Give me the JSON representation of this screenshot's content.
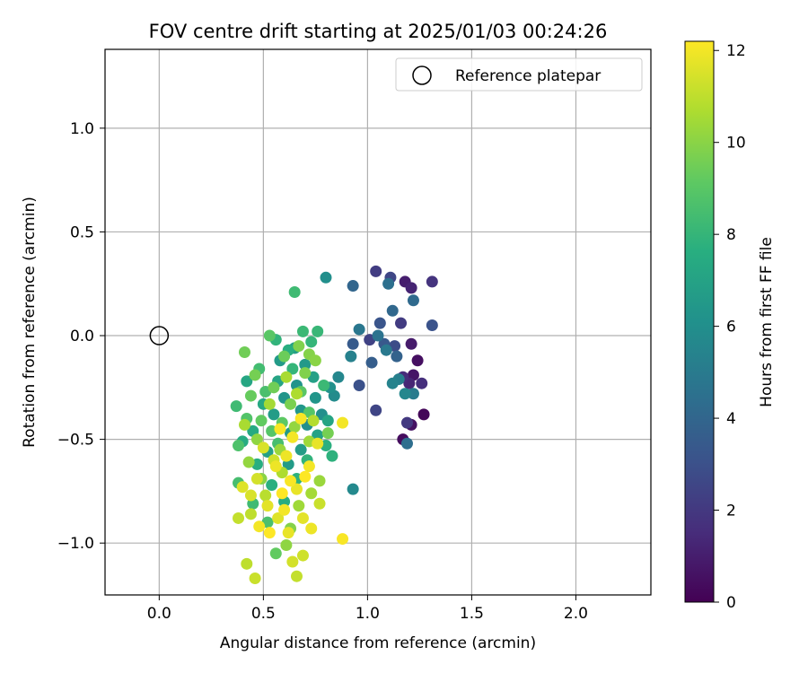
{
  "chart_data": {
    "type": "scatter",
    "title": "FOV centre drift starting at 2025/01/03 00:24:26",
    "xlabel": "Angular distance from reference (arcmin)",
    "ylabel": "Rotation from reference (arcmin)",
    "xlim": [
      -0.26,
      2.36
    ],
    "ylim": [
      -1.25,
      1.38
    ],
    "xticks": [
      0.0,
      0.5,
      1.0,
      1.5,
      2.0
    ],
    "xtick_labels": [
      "0.0",
      "0.5",
      "1.0",
      "1.5",
      "2.0"
    ],
    "yticks": [
      -1.0,
      -0.5,
      0.0,
      0.5,
      1.0
    ],
    "ytick_labels": [
      "−1.0",
      "−0.5",
      "0.0",
      "0.5",
      "1.0"
    ],
    "grid": true,
    "legend": {
      "placement": "upper right",
      "entries": [
        "Reference platepar"
      ]
    },
    "reference_point": {
      "x": 0.0,
      "y": 0.0,
      "label": "Reference platepar"
    },
    "colorbar": {
      "label": "Hours from first FF file",
      "min": 0,
      "max": 12.2,
      "colormap": "viridis",
      "ticks": [
        0,
        2,
        4,
        6,
        8,
        10,
        12
      ],
      "tick_labels": [
        "0",
        "2",
        "4",
        "6",
        "8",
        "10",
        "12"
      ]
    },
    "points": [
      {
        "x": 1.27,
        "y": -0.38,
        "h": 0.2
      },
      {
        "x": 1.17,
        "y": -0.5,
        "h": 0.4
      },
      {
        "x": 1.21,
        "y": -0.43,
        "h": 0.6
      },
      {
        "x": 1.24,
        "y": -0.12,
        "h": 0.5
      },
      {
        "x": 1.22,
        "y": -0.19,
        "h": 0.7
      },
      {
        "x": 1.21,
        "y": -0.04,
        "h": 0.9
      },
      {
        "x": 1.18,
        "y": 0.26,
        "h": 1.0
      },
      {
        "x": 1.21,
        "y": 0.23,
        "h": 1.2
      },
      {
        "x": 1.2,
        "y": -0.23,
        "h": 1.3
      },
      {
        "x": 1.17,
        "y": -0.2,
        "h": 1.5
      },
      {
        "x": 1.26,
        "y": -0.23,
        "h": 1.6
      },
      {
        "x": 1.31,
        "y": 0.26,
        "h": 1.8
      },
      {
        "x": 1.19,
        "y": -0.42,
        "h": 2.0
      },
      {
        "x": 1.16,
        "y": 0.06,
        "h": 2.1
      },
      {
        "x": 1.04,
        "y": 0.31,
        "h": 2.2
      },
      {
        "x": 1.01,
        "y": -0.02,
        "h": 2.4
      },
      {
        "x": 1.04,
        "y": -0.36,
        "h": 2.5
      },
      {
        "x": 1.11,
        "y": 0.28,
        "h": 2.6
      },
      {
        "x": 1.13,
        "y": -0.05,
        "h": 2.8
      },
      {
        "x": 0.96,
        "y": -0.24,
        "h": 3.0
      },
      {
        "x": 1.31,
        "y": 0.05,
        "h": 3.1
      },
      {
        "x": 1.06,
        "y": 0.06,
        "h": 3.2
      },
      {
        "x": 1.08,
        "y": -0.04,
        "h": 3.4
      },
      {
        "x": 0.93,
        "y": -0.04,
        "h": 3.5
      },
      {
        "x": 1.02,
        "y": -0.13,
        "h": 3.6
      },
      {
        "x": 1.14,
        "y": -0.1,
        "h": 3.8
      },
      {
        "x": 0.93,
        "y": 0.24,
        "h": 4.0
      },
      {
        "x": 1.12,
        "y": 0.12,
        "h": 4.1
      },
      {
        "x": 1.22,
        "y": 0.17,
        "h": 4.2
      },
      {
        "x": 1.19,
        "y": -0.52,
        "h": 4.4
      },
      {
        "x": 1.1,
        "y": 0.25,
        "h": 4.5
      },
      {
        "x": 1.05,
        "y": 0.0,
        "h": 4.6
      },
      {
        "x": 0.96,
        "y": 0.03,
        "h": 4.8
      },
      {
        "x": 1.09,
        "y": -0.07,
        "h": 4.9
      },
      {
        "x": 1.22,
        "y": -0.28,
        "h": 5.0
      },
      {
        "x": 1.15,
        "y": -0.21,
        "h": 5.2
      },
      {
        "x": 0.92,
        "y": -0.1,
        "h": 5.3
      },
      {
        "x": 1.12,
        "y": -0.23,
        "h": 5.4
      },
      {
        "x": 1.18,
        "y": -0.28,
        "h": 5.6
      },
      {
        "x": 0.93,
        "y": -0.74,
        "h": 5.7
      },
      {
        "x": 0.8,
        "y": 0.28,
        "h": 6.0
      },
      {
        "x": 0.86,
        "y": -0.2,
        "h": 5.6
      },
      {
        "x": 0.84,
        "y": -0.29,
        "h": 5.8
      },
      {
        "x": 0.82,
        "y": -0.25,
        "h": 6.1
      },
      {
        "x": 0.78,
        "y": -0.38,
        "h": 6.0
      },
      {
        "x": 0.75,
        "y": -0.3,
        "h": 6.3
      },
      {
        "x": 0.71,
        "y": -0.43,
        "h": 6.0
      },
      {
        "x": 0.68,
        "y": -0.36,
        "h": 6.4
      },
      {
        "x": 0.66,
        "y": -0.24,
        "h": 6.2
      },
      {
        "x": 0.63,
        "y": -0.47,
        "h": 6.5
      },
      {
        "x": 0.6,
        "y": -0.3,
        "h": 6.3
      },
      {
        "x": 0.58,
        "y": -0.12,
        "h": 6.6
      },
      {
        "x": 0.65,
        "y": -0.06,
        "h": 6.8
      },
      {
        "x": 0.7,
        "y": -0.14,
        "h": 6.5
      },
      {
        "x": 0.74,
        "y": -0.2,
        "h": 6.9
      },
      {
        "x": 0.55,
        "y": -0.38,
        "h": 6.7
      },
      {
        "x": 0.52,
        "y": -0.56,
        "h": 6.9
      },
      {
        "x": 0.62,
        "y": -0.62,
        "h": 6.6
      },
      {
        "x": 0.68,
        "y": -0.55,
        "h": 6.7
      },
      {
        "x": 0.76,
        "y": -0.48,
        "h": 7.0
      },
      {
        "x": 0.81,
        "y": -0.41,
        "h": 7.1
      },
      {
        "x": 0.57,
        "y": -0.22,
        "h": 7.1
      },
      {
        "x": 0.5,
        "y": -0.33,
        "h": 7.3
      },
      {
        "x": 0.45,
        "y": -0.46,
        "h": 7.4
      },
      {
        "x": 0.42,
        "y": -0.22,
        "h": 7.2
      },
      {
        "x": 0.4,
        "y": -0.51,
        "h": 7.5
      },
      {
        "x": 0.47,
        "y": -0.62,
        "h": 7.6
      },
      {
        "x": 0.54,
        "y": -0.72,
        "h": 7.7
      },
      {
        "x": 0.6,
        "y": -0.8,
        "h": 7.5
      },
      {
        "x": 0.66,
        "y": -0.69,
        "h": 7.8
      },
      {
        "x": 0.71,
        "y": -0.6,
        "h": 7.9
      },
      {
        "x": 0.8,
        "y": -0.53,
        "h": 7.7
      },
      {
        "x": 0.83,
        "y": -0.58,
        "h": 7.8
      },
      {
        "x": 0.62,
        "y": -0.07,
        "h": 7.6
      },
      {
        "x": 0.56,
        "y": -0.02,
        "h": 7.9
      },
      {
        "x": 0.73,
        "y": -0.03,
        "h": 8.0
      },
      {
        "x": 0.76,
        "y": 0.02,
        "h": 8.1
      },
      {
        "x": 0.69,
        "y": 0.02,
        "h": 8.2
      },
      {
        "x": 0.65,
        "y": 0.21,
        "h": 8.3
      },
      {
        "x": 0.79,
        "y": -0.24,
        "h": 8.2
      },
      {
        "x": 0.64,
        "y": -0.16,
        "h": 8.0
      },
      {
        "x": 0.48,
        "y": -0.16,
        "h": 8.4
      },
      {
        "x": 0.37,
        "y": -0.34,
        "h": 8.3
      },
      {
        "x": 0.38,
        "y": -0.71,
        "h": 8.5
      },
      {
        "x": 0.45,
        "y": -0.81,
        "h": 8.3
      },
      {
        "x": 0.52,
        "y": -0.9,
        "h": 8.6
      },
      {
        "x": 0.57,
        "y": -0.52,
        "h": 8.5
      },
      {
        "x": 0.51,
        "y": -0.27,
        "h": 8.6
      },
      {
        "x": 0.42,
        "y": -0.4,
        "h": 8.8
      },
      {
        "x": 0.38,
        "y": -0.53,
        "h": 8.7
      },
      {
        "x": 0.72,
        "y": -0.37,
        "h": 8.9
      },
      {
        "x": 0.68,
        "y": -0.27,
        "h": 9.0
      },
      {
        "x": 0.59,
        "y": -0.42,
        "h": 9.1
      },
      {
        "x": 0.54,
        "y": -0.46,
        "h": 8.9
      },
      {
        "x": 0.49,
        "y": -0.41,
        "h": 9.2
      },
      {
        "x": 0.44,
        "y": -0.29,
        "h": 9.3
      },
      {
        "x": 0.53,
        "y": 0.0,
        "h": 9.0
      },
      {
        "x": 0.6,
        "y": -0.1,
        "h": 9.4
      },
      {
        "x": 0.41,
        "y": -0.08,
        "h": 9.5
      },
      {
        "x": 0.46,
        "y": -0.19,
        "h": 9.6
      },
      {
        "x": 0.55,
        "y": -0.25,
        "h": 9.5
      },
      {
        "x": 0.63,
        "y": -0.33,
        "h": 9.7
      },
      {
        "x": 0.7,
        "y": -0.18,
        "h": 9.8
      },
      {
        "x": 0.72,
        "y": -0.09,
        "h": 9.9
      },
      {
        "x": 0.67,
        "y": -0.05,
        "h": 9.8
      },
      {
        "x": 0.75,
        "y": -0.12,
        "h": 10.0
      },
      {
        "x": 0.81,
        "y": -0.47,
        "h": 9.6
      },
      {
        "x": 0.56,
        "y": -1.05,
        "h": 9.2
      },
      {
        "x": 0.63,
        "y": -0.93,
        "h": 9.9
      },
      {
        "x": 0.61,
        "y": -1.01,
        "h": 10.1
      },
      {
        "x": 0.49,
        "y": -0.69,
        "h": 10.0
      },
      {
        "x": 0.43,
        "y": -0.61,
        "h": 10.2
      },
      {
        "x": 0.47,
        "y": -0.5,
        "h": 10.1
      },
      {
        "x": 0.58,
        "y": -0.55,
        "h": 10.3
      },
      {
        "x": 0.65,
        "y": -0.44,
        "h": 10.2
      },
      {
        "x": 0.72,
        "y": -0.51,
        "h": 10.4
      },
      {
        "x": 0.77,
        "y": -0.7,
        "h": 10.3
      },
      {
        "x": 0.73,
        "y": -0.76,
        "h": 10.5
      },
      {
        "x": 0.67,
        "y": -0.82,
        "h": 10.4
      },
      {
        "x": 0.41,
        "y": -0.43,
        "h": 10.6
      },
      {
        "x": 0.53,
        "y": -0.33,
        "h": 10.5
      },
      {
        "x": 0.61,
        "y": -0.2,
        "h": 10.6
      },
      {
        "x": 0.66,
        "y": -0.28,
        "h": 10.7
      },
      {
        "x": 0.74,
        "y": -0.41,
        "h": 10.8
      },
      {
        "x": 0.59,
        "y": -0.66,
        "h": 10.7
      },
      {
        "x": 0.51,
        "y": -0.77,
        "h": 10.9
      },
      {
        "x": 0.44,
        "y": -0.86,
        "h": 11.0
      },
      {
        "x": 0.38,
        "y": -0.88,
        "h": 11.1
      },
      {
        "x": 0.42,
        "y": -1.1,
        "h": 11.0
      },
      {
        "x": 0.46,
        "y": -1.17,
        "h": 11.2
      },
      {
        "x": 0.66,
        "y": -1.16,
        "h": 11.1
      },
      {
        "x": 0.69,
        "y": -1.06,
        "h": 11.3
      },
      {
        "x": 0.64,
        "y": -1.09,
        "h": 11.4
      },
      {
        "x": 0.77,
        "y": -0.81,
        "h": 11.2
      },
      {
        "x": 0.55,
        "y": -0.6,
        "h": 11.3
      },
      {
        "x": 0.5,
        "y": -0.54,
        "h": 11.5
      },
      {
        "x": 0.47,
        "y": -0.69,
        "h": 11.4
      },
      {
        "x": 0.4,
        "y": -0.73,
        "h": 11.6
      },
      {
        "x": 0.44,
        "y": -0.77,
        "h": 11.5
      },
      {
        "x": 0.52,
        "y": -0.82,
        "h": 11.7
      },
      {
        "x": 0.57,
        "y": -0.88,
        "h": 11.6
      },
      {
        "x": 0.62,
        "y": -0.95,
        "h": 11.8
      },
      {
        "x": 0.69,
        "y": -0.88,
        "h": 11.7
      },
      {
        "x": 0.73,
        "y": -0.93,
        "h": 11.9
      },
      {
        "x": 0.66,
        "y": -0.74,
        "h": 11.8
      },
      {
        "x": 0.72,
        "y": -0.63,
        "h": 12.0
      },
      {
        "x": 0.61,
        "y": -0.58,
        "h": 11.9
      },
      {
        "x": 0.64,
        "y": -0.49,
        "h": 12.0
      },
      {
        "x": 0.58,
        "y": -0.45,
        "h": 12.1
      },
      {
        "x": 0.68,
        "y": -0.4,
        "h": 12.1
      },
      {
        "x": 0.76,
        "y": -0.52,
        "h": 11.8
      },
      {
        "x": 0.88,
        "y": -0.42,
        "h": 12.0
      },
      {
        "x": 0.88,
        "y": -0.98,
        "h": 12.1
      },
      {
        "x": 0.53,
        "y": -0.95,
        "h": 12.2
      },
      {
        "x": 0.48,
        "y": -0.92,
        "h": 12.0
      },
      {
        "x": 0.59,
        "y": -0.76,
        "h": 12.2
      },
      {
        "x": 0.63,
        "y": -0.7,
        "h": 12.1
      },
      {
        "x": 0.7,
        "y": -0.68,
        "h": 12.2
      },
      {
        "x": 0.56,
        "y": -0.63,
        "h": 11.9
      },
      {
        "x": 0.6,
        "y": -0.84,
        "h": 12.0
      }
    ]
  }
}
